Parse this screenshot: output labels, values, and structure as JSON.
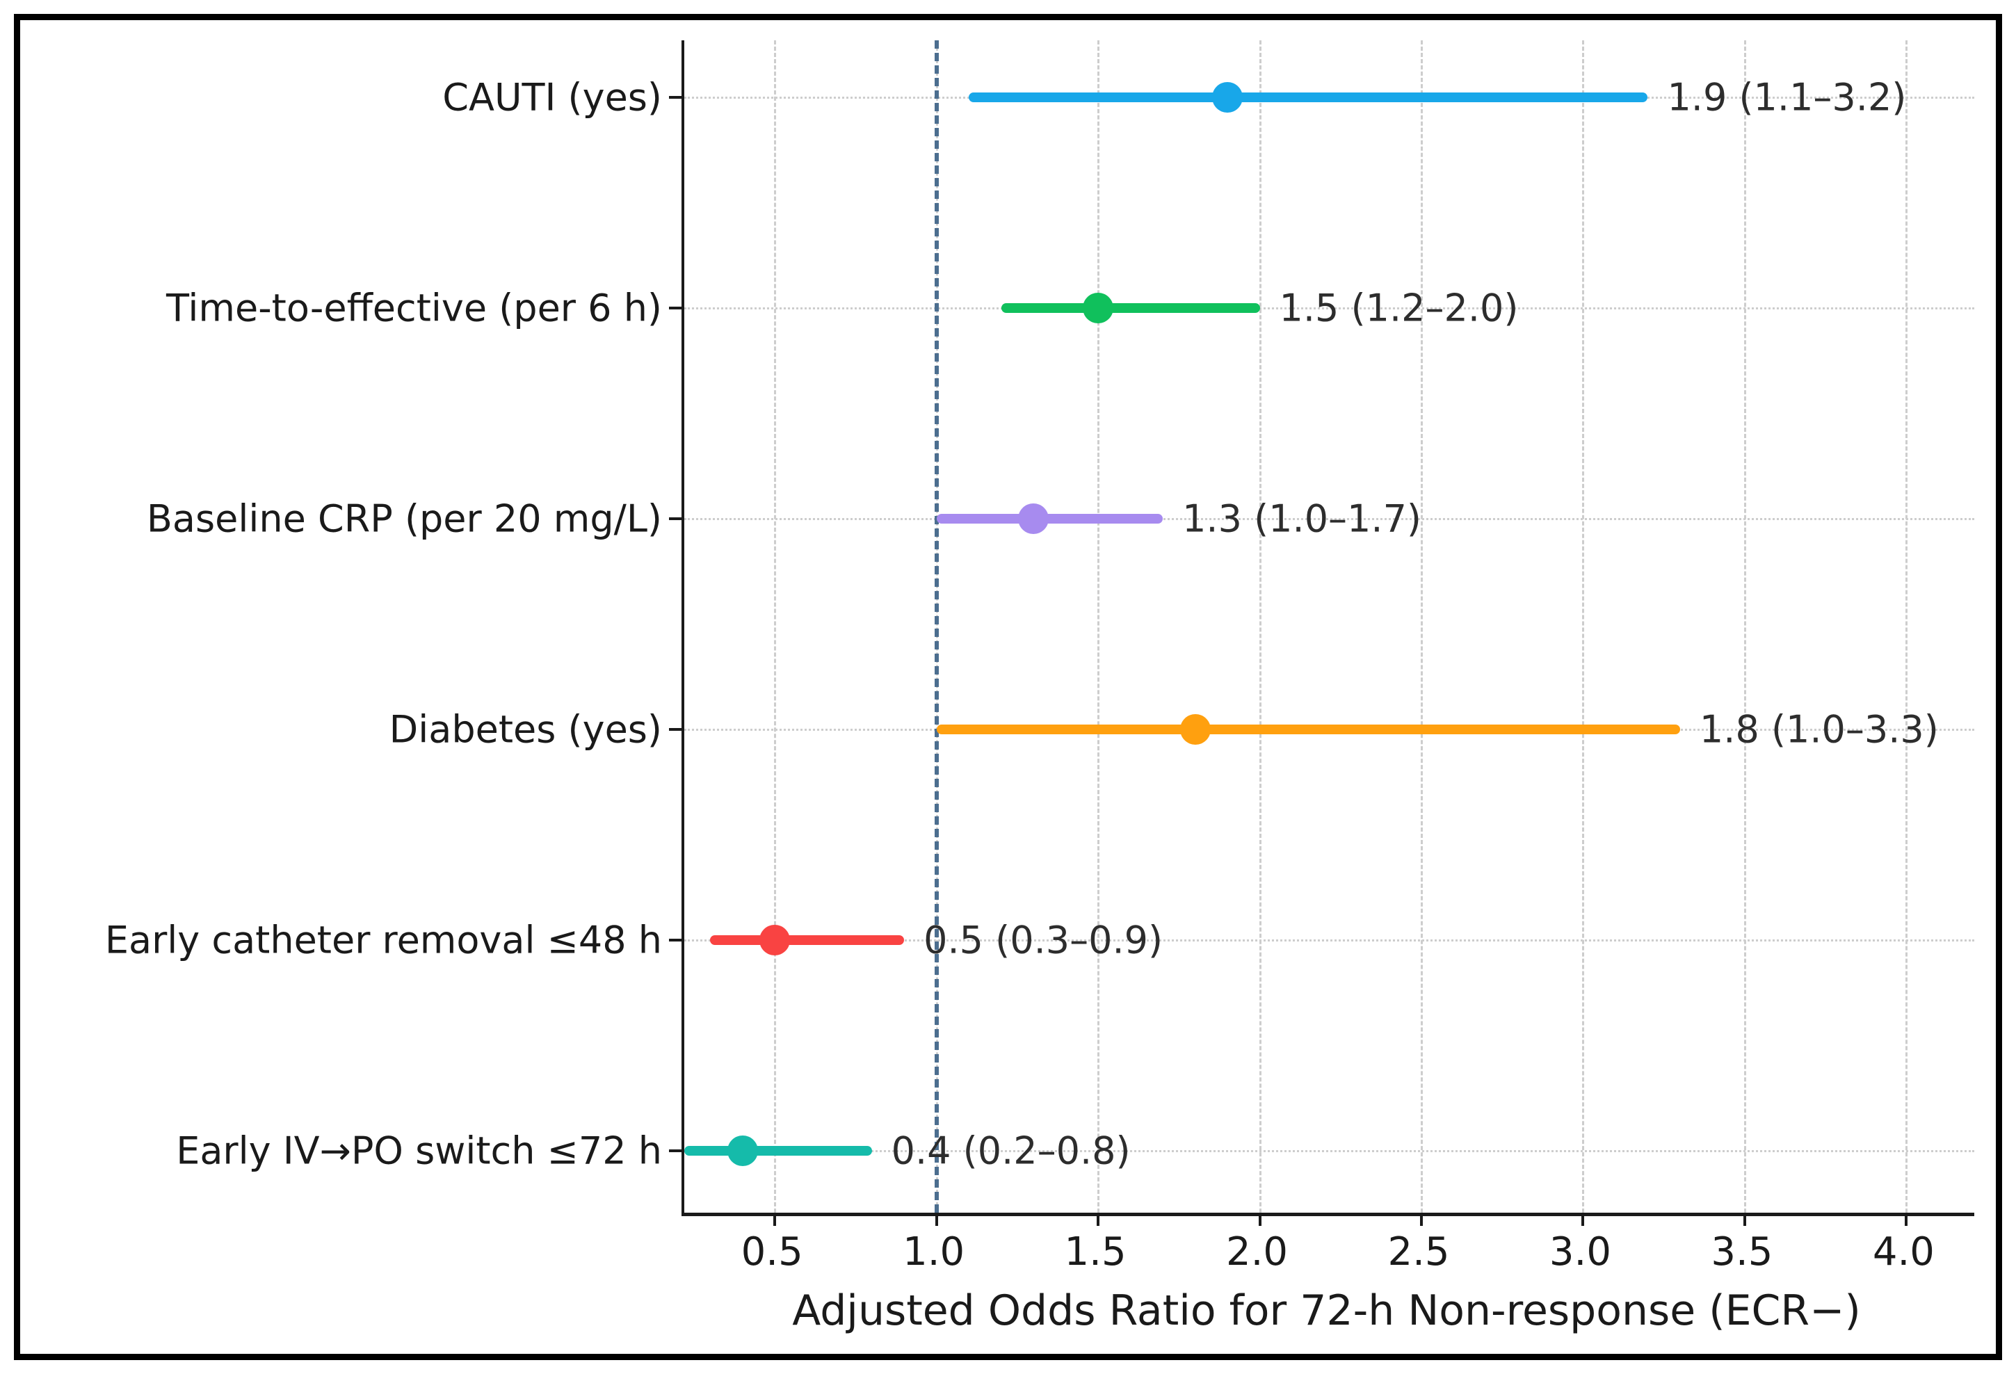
{
  "chart_data": {
    "type": "forest",
    "title": "",
    "xlabel": "Adjusted Odds Ratio for 72-h Non-response (ECR−)",
    "ylabel": "",
    "xlim": [
      0.22,
      4.21
    ],
    "xticks": [
      0.5,
      1.0,
      1.5,
      2.0,
      2.5,
      3.0,
      3.5,
      4.0
    ],
    "xtick_labels": [
      "0.5",
      "1.0",
      "1.5",
      "2.0",
      "2.5",
      "3.0",
      "3.5",
      "4.0"
    ],
    "grid": {
      "vertical_style": "dashed",
      "horizontal_style": "dotted",
      "color": "#cdcdcd"
    },
    "reference_line": {
      "value": 1.0,
      "style": "dashed",
      "color": "#4c6e8f"
    },
    "axis_color": "#1a1a1a",
    "text_color": "#1a1a1a",
    "annotation_color": "#2d2d2d",
    "legend": null,
    "rows": [
      {
        "label": "CAUTI (yes)",
        "estimate": 1.9,
        "ci_low": 1.1,
        "ci_high": 3.2,
        "annotation": "1.9 (1.1–3.2)",
        "color": "#18a7e9"
      },
      {
        "label": "Time-to-effective (per 6 h)",
        "estimate": 1.5,
        "ci_low": 1.2,
        "ci_high": 2.0,
        "annotation": "1.5 (1.2–2.0)",
        "color": "#10c05c"
      },
      {
        "label": "Baseline CRP (per 20 mg/L)",
        "estimate": 1.3,
        "ci_low": 1.0,
        "ci_high": 1.7,
        "annotation": "1.3 (1.0–1.7)",
        "color": "#a78bef"
      },
      {
        "label": "Diabetes (yes)",
        "estimate": 1.8,
        "ci_low": 1.0,
        "ci_high": 3.3,
        "annotation": "1.8 (1.0–3.3)",
        "color": "#ffa00f"
      },
      {
        "label": "Early catheter removal ≤48 h",
        "estimate": 0.5,
        "ci_low": 0.3,
        "ci_high": 0.9,
        "annotation": "0.5 (0.3–0.9)",
        "color": "#f94342"
      },
      {
        "label": "Early IV→PO switch ≤72 h",
        "estimate": 0.4,
        "ci_low": 0.2,
        "ci_high": 0.8,
        "annotation": "0.4 (0.2–0.8)",
        "color": "#15bbaa"
      }
    ]
  }
}
